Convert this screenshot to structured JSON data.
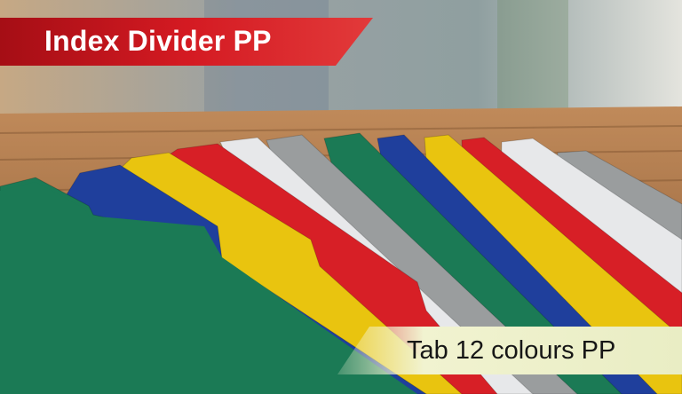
{
  "banner": {
    "title": "Index Divider PP",
    "color": "#c8141c"
  },
  "caption": {
    "text": "Tab 12 colours PP",
    "color": "#eef0cc"
  },
  "scene": {
    "description_colors": {
      "green": "#1b7a55",
      "blue": "#1f3f9c",
      "yellow": "#e9c40f",
      "red": "#d71f26",
      "white": "#e7e8ea",
      "gray": "#9a9d9e",
      "wood": "#a5734a"
    }
  }
}
